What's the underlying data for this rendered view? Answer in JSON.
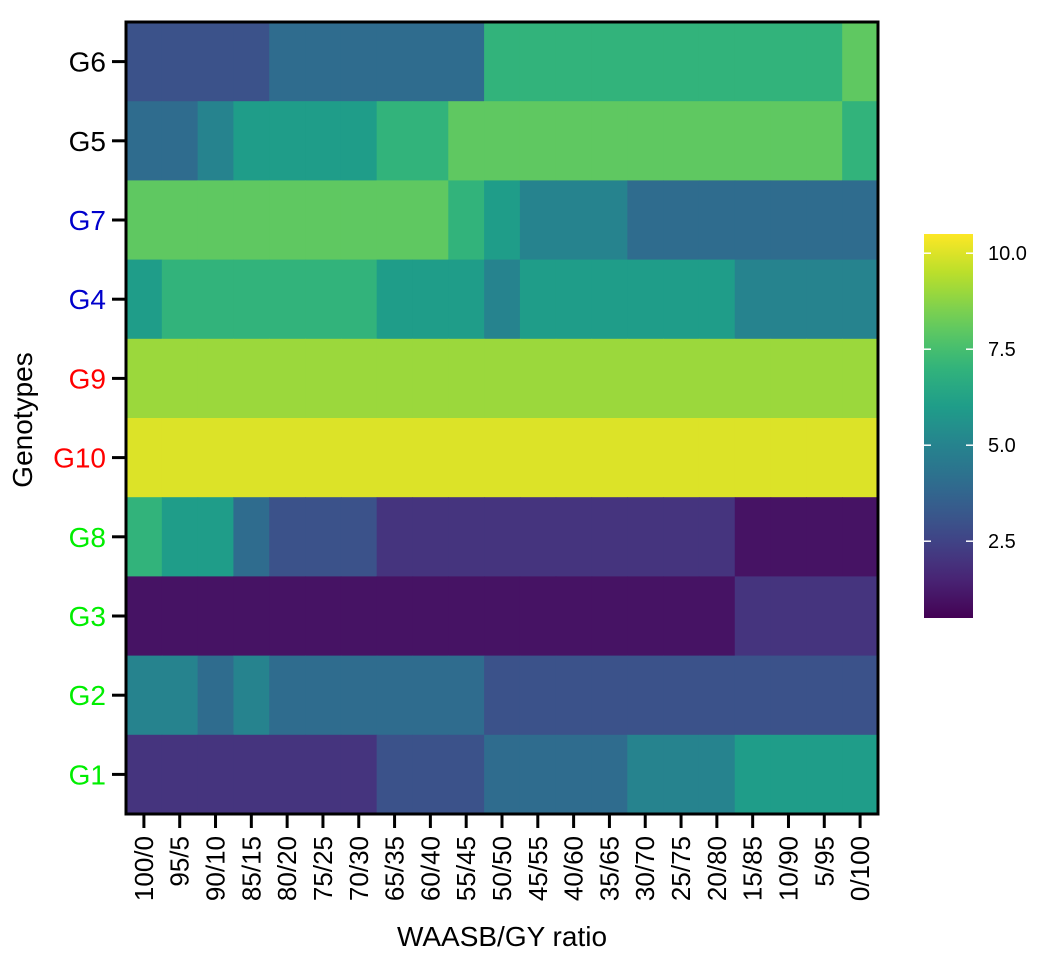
{
  "chart_data": {
    "type": "heatmap",
    "title": "",
    "xlabel": "WAASB/GY ratio",
    "ylabel": "Genotypes",
    "x_categories": [
      "100/0",
      "95/5",
      "90/10",
      "85/15",
      "80/20",
      "75/25",
      "70/30",
      "65/35",
      "60/40",
      "55/45",
      "50/50",
      "45/55",
      "40/60",
      "35/65",
      "30/70",
      "25/75",
      "20/80",
      "15/85",
      "10/90",
      "5/95",
      "0/100"
    ],
    "rows": [
      {
        "genotype": "G6",
        "label_color": "#000000",
        "values": [
          3,
          3,
          3,
          3,
          4,
          4,
          4,
          4,
          4,
          4,
          7,
          7,
          7,
          7,
          7,
          7,
          7,
          7,
          7,
          7,
          8
        ]
      },
      {
        "genotype": "G5",
        "label_color": "#000000",
        "values": [
          4,
          4,
          5,
          6,
          6,
          6,
          6,
          7,
          7,
          8,
          8,
          8,
          8,
          8,
          8,
          8,
          8,
          8,
          8,
          8,
          7
        ]
      },
      {
        "genotype": "G7",
        "label_color": "#0000cc",
        "values": [
          8,
          8,
          8,
          8,
          8,
          8,
          8,
          8,
          8,
          7,
          6,
          5,
          5,
          5,
          4,
          4,
          4,
          4,
          4,
          4,
          4
        ]
      },
      {
        "genotype": "G4",
        "label_color": "#0000cc",
        "values": [
          6,
          7,
          7,
          7,
          7,
          7,
          7,
          6,
          6,
          6,
          5,
          6,
          6,
          6,
          6,
          6,
          6,
          5,
          5,
          5,
          5
        ]
      },
      {
        "genotype": "G9",
        "label_color": "#ff0000",
        "values": [
          9,
          9,
          9,
          9,
          9,
          9,
          9,
          9,
          9,
          9,
          9,
          9,
          9,
          9,
          9,
          9,
          9,
          9,
          9,
          9,
          9
        ]
      },
      {
        "genotype": "G10",
        "label_color": "#ff0000",
        "values": [
          10,
          10,
          10,
          10,
          10,
          10,
          10,
          10,
          10,
          10,
          10,
          10,
          10,
          10,
          10,
          10,
          10,
          10,
          10,
          10,
          10
        ]
      },
      {
        "genotype": "G8",
        "label_color": "#00ee00",
        "values": [
          7,
          6,
          6,
          4,
          3,
          3,
          3,
          2,
          2,
          2,
          2,
          2,
          2,
          2,
          2,
          2,
          2,
          1,
          1,
          1,
          1
        ]
      },
      {
        "genotype": "G3",
        "label_color": "#00ee00",
        "values": [
          1,
          1,
          1,
          1,
          1,
          1,
          1,
          1,
          1,
          1,
          1,
          1,
          1,
          1,
          1,
          1,
          1,
          2,
          2,
          2,
          2
        ]
      },
      {
        "genotype": "G2",
        "label_color": "#00ee00",
        "values": [
          5,
          5,
          4,
          5,
          4,
          4,
          4,
          4,
          4,
          4,
          3,
          3,
          3,
          3,
          3,
          3,
          3,
          3,
          3,
          3,
          3
        ]
      },
      {
        "genotype": "G1",
        "label_color": "#00ee00",
        "values": [
          2,
          2,
          2,
          2,
          2,
          2,
          2,
          3,
          3,
          3,
          4,
          4,
          4,
          4,
          5,
          5,
          5,
          6,
          6,
          6,
          6
        ]
      }
    ],
    "colorbar": {
      "range": [
        0.5,
        10.5
      ],
      "ticks": [
        2.5,
        5.0,
        7.5,
        10.0
      ],
      "tick_labels": [
        "2.5",
        "5.0",
        "7.5",
        "10.0"
      ],
      "colormap": "viridis"
    },
    "legend_position": "right",
    "grid": false
  }
}
